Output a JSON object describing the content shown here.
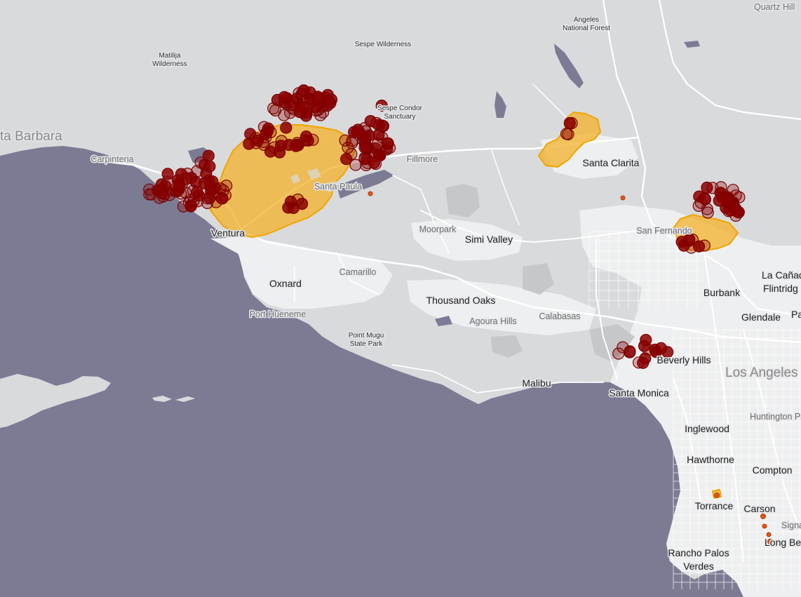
{
  "map": {
    "colors": {
      "ocean": "#7b7c94",
      "land": "#d9dadc",
      "urban": "#eeeff0",
      "roads": "#ffffff",
      "fire_perimeter_fill": "#f3b229",
      "fire_perimeter_stroke": "#f0a500",
      "hotspot_fill": "#8b0000",
      "hotspot_stroke": "#7a0000",
      "small_fire": "#e3541a"
    },
    "labels": {
      "quartz_hill": "Quartz Hill",
      "angeles_nf_line1": "Angeles",
      "angeles_nf_line2": "National Forest",
      "sespe_wilderness": "Sespe Wilderness",
      "matilija_line1": "Matilija",
      "matilija_line2": "Wilderness",
      "santa_barbara": "ta Barbara",
      "sespe_condor_line1": "Sespe Condor",
      "sespe_condor_line2": "Sanctuary",
      "carpinteria": "Carpinteria",
      "fillmore": "Fillmore",
      "santa_clarita": "Santa Clarita",
      "santa_paula": "Santa Paula",
      "ventura": "Ventura",
      "moorpark": "Moorpark",
      "simi_valley": "Simi Valley",
      "san_fernando": "San Fernando",
      "la_canada_line1": "La Cañad",
      "la_canada_line2": "Flintridg",
      "camarillo": "Camarillo",
      "oxnard": "Oxnard",
      "burbank": "Burbank",
      "thousand_oaks": "Thousand Oaks",
      "port_hueneme": "Port Hueneme",
      "agoura_hills": "Agoura Hills",
      "calabasas": "Calabasas",
      "glendale": "Glendale",
      "pa": "Pa",
      "point_mugu_line1": "Point Mugu",
      "point_mugu_line2": "State Park",
      "beverly_hills": "Beverly Hills",
      "los_angeles": "Los Angeles",
      "malibu": "Malibu",
      "santa_monica": "Santa Monica",
      "huntington_park": "Huntington Par",
      "inglewood": "Inglewood",
      "hawthorne": "Hawthorne",
      "compton": "Compton",
      "torrance": "Torrance",
      "carson": "Carson",
      "signal": "Signa",
      "long_beach": "Long Be",
      "rancho_palos_line1": "Rancho Palos",
      "rancho_palos_line2": "Verdes"
    }
  }
}
